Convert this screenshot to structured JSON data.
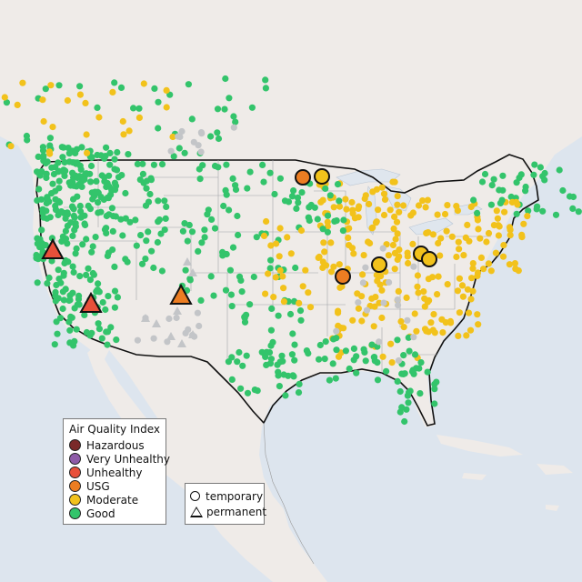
{
  "legend": {
    "title": "Air Quality Index",
    "categories": [
      {
        "label": "Hazardous",
        "color": "#7a2a2a"
      },
      {
        "label": "Very Unhealthy",
        "color": "#8e5ba8"
      },
      {
        "label": "Unhealthy",
        "color": "#e8503a"
      },
      {
        "label": "USG",
        "color": "#ec7d22"
      },
      {
        "label": "Moderate",
        "color": "#f2c21b"
      },
      {
        "label": "Good",
        "color": "#33c46b"
      }
    ],
    "monitor_types": [
      {
        "label": "temporary",
        "shape": "circle"
      },
      {
        "label": "permanent",
        "shape": "triangle"
      }
    ]
  },
  "colors": {
    "land": "#f0ecea",
    "water": "#dfe6ee",
    "nodata": "#c3c5c8"
  },
  "markers_featured": [
    {
      "category": "Unhealthy",
      "type": "permanent"
    },
    {
      "category": "Unhealthy",
      "type": "permanent"
    },
    {
      "category": "USG",
      "type": "permanent"
    },
    {
      "category": "USG",
      "type": "temporary"
    },
    {
      "category": "Moderate",
      "type": "temporary"
    },
    {
      "category": "USG",
      "type": "temporary"
    },
    {
      "category": "Moderate",
      "type": "temporary"
    },
    {
      "category": "Moderate",
      "type": "temporary"
    },
    {
      "category": "Moderate",
      "type": "temporary"
    }
  ]
}
